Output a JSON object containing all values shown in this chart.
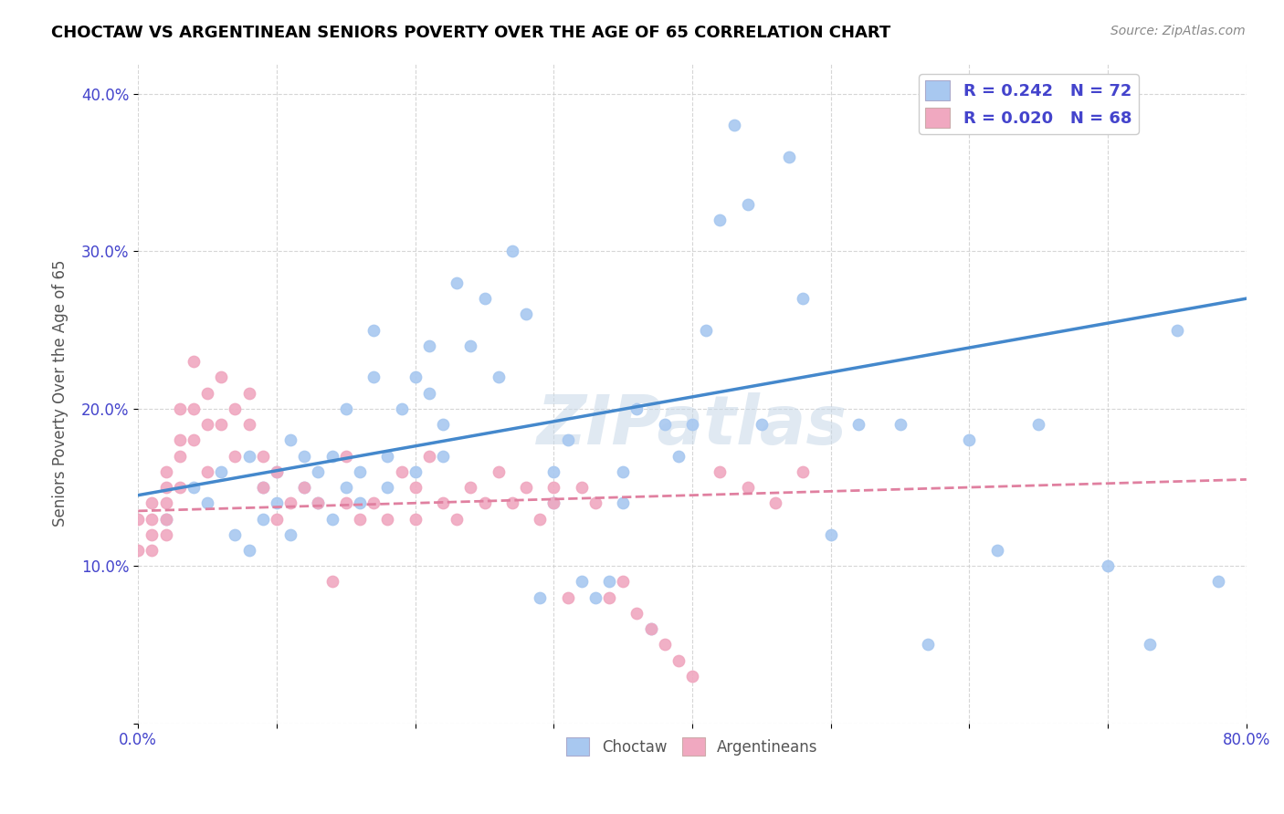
{
  "title": "CHOCTAW VS ARGENTINEAN SENIORS POVERTY OVER THE AGE OF 65 CORRELATION CHART",
  "source": "Source: ZipAtlas.com",
  "ylabel": "Seniors Poverty Over the Age of 65",
  "xlim": [
    0,
    0.8
  ],
  "ylim": [
    0,
    0.42
  ],
  "xticks": [
    0.0,
    0.1,
    0.2,
    0.3,
    0.4,
    0.5,
    0.6,
    0.7,
    0.8
  ],
  "xticklabels": [
    "0.0%",
    "",
    "",
    "",
    "",
    "",
    "",
    "",
    "80.0%"
  ],
  "yticks": [
    0.0,
    0.1,
    0.2,
    0.3,
    0.4
  ],
  "yticklabels": [
    "",
    "10.0%",
    "20.0%",
    "30.0%",
    "40.0%"
  ],
  "choctaw_color": "#a8c8f0",
  "argentinean_color": "#f0a8c0",
  "choctaw_line_color": "#4488cc",
  "argentinean_line_color": "#e080a0",
  "legend_text_color": "#4444cc",
  "R_choctaw": 0.242,
  "N_choctaw": 72,
  "R_argentinean": 0.02,
  "N_argentinean": 68,
  "watermark": "ZIPatlas",
  "choctaw_x": [
    0.02,
    0.04,
    0.05,
    0.06,
    0.07,
    0.08,
    0.08,
    0.09,
    0.09,
    0.1,
    0.1,
    0.11,
    0.11,
    0.12,
    0.12,
    0.13,
    0.13,
    0.14,
    0.14,
    0.15,
    0.15,
    0.16,
    0.16,
    0.17,
    0.17,
    0.18,
    0.18,
    0.19,
    0.2,
    0.2,
    0.21,
    0.21,
    0.22,
    0.22,
    0.23,
    0.24,
    0.25,
    0.26,
    0.27,
    0.28,
    0.29,
    0.3,
    0.3,
    0.31,
    0.32,
    0.33,
    0.34,
    0.35,
    0.35,
    0.36,
    0.37,
    0.38,
    0.39,
    0.4,
    0.41,
    0.42,
    0.43,
    0.44,
    0.45,
    0.47,
    0.48,
    0.5,
    0.52,
    0.55,
    0.57,
    0.6,
    0.62,
    0.65,
    0.7,
    0.73,
    0.75,
    0.78
  ],
  "choctaw_y": [
    0.13,
    0.15,
    0.14,
    0.16,
    0.12,
    0.11,
    0.17,
    0.13,
    0.15,
    0.14,
    0.16,
    0.12,
    0.18,
    0.15,
    0.17,
    0.14,
    0.16,
    0.13,
    0.17,
    0.15,
    0.2,
    0.14,
    0.16,
    0.22,
    0.25,
    0.17,
    0.15,
    0.2,
    0.22,
    0.16,
    0.24,
    0.21,
    0.17,
    0.19,
    0.28,
    0.24,
    0.27,
    0.22,
    0.3,
    0.26,
    0.08,
    0.14,
    0.16,
    0.18,
    0.09,
    0.08,
    0.09,
    0.14,
    0.16,
    0.2,
    0.06,
    0.19,
    0.17,
    0.19,
    0.25,
    0.32,
    0.38,
    0.33,
    0.19,
    0.36,
    0.27,
    0.12,
    0.19,
    0.19,
    0.05,
    0.18,
    0.11,
    0.19,
    0.1,
    0.05,
    0.25,
    0.09
  ],
  "argentinean_x": [
    0.0,
    0.0,
    0.01,
    0.01,
    0.01,
    0.01,
    0.02,
    0.02,
    0.02,
    0.02,
    0.02,
    0.03,
    0.03,
    0.03,
    0.03,
    0.04,
    0.04,
    0.04,
    0.05,
    0.05,
    0.05,
    0.06,
    0.06,
    0.07,
    0.07,
    0.08,
    0.08,
    0.09,
    0.09,
    0.1,
    0.1,
    0.11,
    0.12,
    0.13,
    0.14,
    0.15,
    0.15,
    0.16,
    0.17,
    0.18,
    0.19,
    0.2,
    0.2,
    0.21,
    0.22,
    0.23,
    0.24,
    0.25,
    0.26,
    0.27,
    0.28,
    0.29,
    0.3,
    0.3,
    0.31,
    0.32,
    0.33,
    0.34,
    0.35,
    0.36,
    0.37,
    0.38,
    0.39,
    0.4,
    0.42,
    0.44,
    0.46,
    0.48
  ],
  "argentinean_y": [
    0.13,
    0.11,
    0.12,
    0.14,
    0.11,
    0.13,
    0.15,
    0.12,
    0.14,
    0.16,
    0.13,
    0.18,
    0.15,
    0.17,
    0.2,
    0.23,
    0.2,
    0.18,
    0.19,
    0.21,
    0.16,
    0.22,
    0.19,
    0.2,
    0.17,
    0.21,
    0.19,
    0.15,
    0.17,
    0.13,
    0.16,
    0.14,
    0.15,
    0.14,
    0.09,
    0.14,
    0.17,
    0.13,
    0.14,
    0.13,
    0.16,
    0.13,
    0.15,
    0.17,
    0.14,
    0.13,
    0.15,
    0.14,
    0.16,
    0.14,
    0.15,
    0.13,
    0.14,
    0.15,
    0.08,
    0.15,
    0.14,
    0.08,
    0.09,
    0.07,
    0.06,
    0.05,
    0.04,
    0.03,
    0.16,
    0.15,
    0.14,
    0.16
  ],
  "choctaw_trend_start": 0.145,
  "choctaw_trend_end": 0.27,
  "argentinean_trend_start": 0.135,
  "argentinean_trend_end": 0.155
}
